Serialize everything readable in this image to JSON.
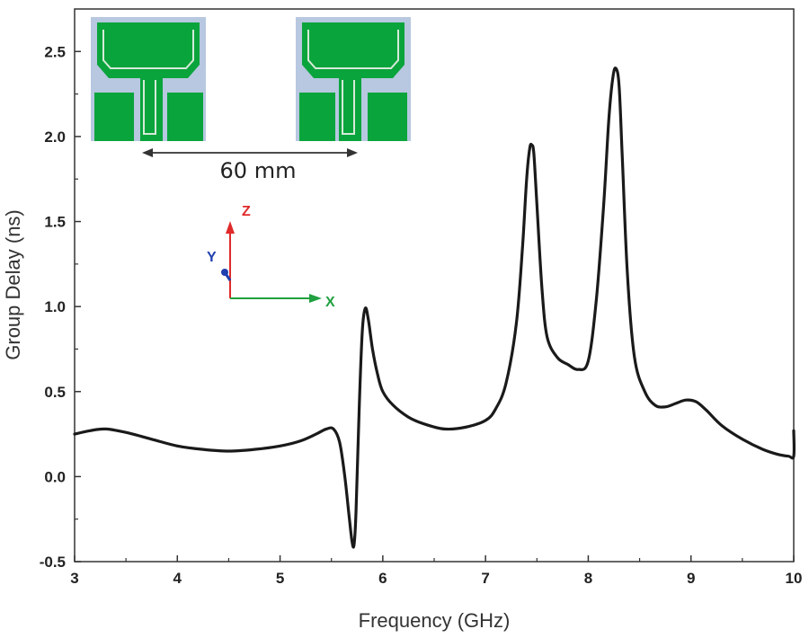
{
  "chart_data": {
    "type": "line",
    "title": "",
    "xlabel": "Frequency (GHz)",
    "ylabel": "Group Delay (ns)",
    "xlim": [
      3,
      10
    ],
    "ylim": [
      -0.5,
      2.75
    ],
    "xticks": [
      3,
      4,
      5,
      6,
      7,
      8,
      9,
      10
    ],
    "yticks": [
      -0.5,
      0.0,
      0.5,
      1.0,
      1.5,
      2.0,
      2.5
    ],
    "xtick_labels": [
      "3",
      "4",
      "5",
      "6",
      "7",
      "8",
      "9",
      "10"
    ],
    "ytick_labels": [
      "-0.5",
      "0.0",
      "0.5",
      "1.0",
      "1.5",
      "2.0",
      "2.5"
    ],
    "grid": false,
    "series": [
      {
        "color": "#1a1a1a",
        "x": [
          3.0,
          3.15,
          3.3,
          3.5,
          3.75,
          4.0,
          4.25,
          4.5,
          4.75,
          5.0,
          5.2,
          5.35,
          5.45,
          5.52,
          5.58,
          5.63,
          5.67,
          5.7,
          5.72,
          5.74,
          5.77,
          5.8,
          5.83,
          5.86,
          5.9,
          5.95,
          6.0,
          6.1,
          6.25,
          6.4,
          6.6,
          6.8,
          7.0,
          7.1,
          7.2,
          7.3,
          7.36,
          7.4,
          7.43,
          7.45,
          7.47,
          7.5,
          7.55,
          7.6,
          7.7,
          7.8,
          7.9,
          8.0,
          8.08,
          8.15,
          8.2,
          8.24,
          8.27,
          8.3,
          8.33,
          8.38,
          8.45,
          8.55,
          8.65,
          8.75,
          8.85,
          8.95,
          9.05,
          9.15,
          9.3,
          9.5,
          9.7,
          9.85,
          9.95,
          10.0,
          10.0
        ],
        "y": [
          0.25,
          0.27,
          0.28,
          0.26,
          0.22,
          0.18,
          0.16,
          0.15,
          0.16,
          0.18,
          0.21,
          0.25,
          0.28,
          0.28,
          0.2,
          0.0,
          -0.22,
          -0.38,
          -0.4,
          -0.2,
          0.4,
          0.85,
          0.99,
          0.92,
          0.75,
          0.6,
          0.5,
          0.42,
          0.35,
          0.31,
          0.28,
          0.29,
          0.33,
          0.4,
          0.55,
          0.9,
          1.35,
          1.75,
          1.93,
          1.95,
          1.9,
          1.6,
          1.1,
          0.82,
          0.7,
          0.66,
          0.63,
          0.68,
          1.05,
          1.6,
          2.1,
          2.35,
          2.4,
          2.3,
          1.9,
          1.2,
          0.7,
          0.5,
          0.42,
          0.41,
          0.43,
          0.45,
          0.44,
          0.39,
          0.3,
          0.22,
          0.16,
          0.13,
          0.12,
          0.12,
          0.27
        ]
      }
    ],
    "annotations": {
      "distance_label": "60 mm",
      "axis_x": "X",
      "axis_y": "Y",
      "axis_z": "Z"
    },
    "colors": {
      "curve": "#1a1a1a",
      "antenna_metal": "#0aa43c",
      "substrate": "#b7c8e0",
      "axis_x": "#20a040",
      "axis_y": "#2040b0",
      "axis_z": "#e02a2a"
    }
  }
}
